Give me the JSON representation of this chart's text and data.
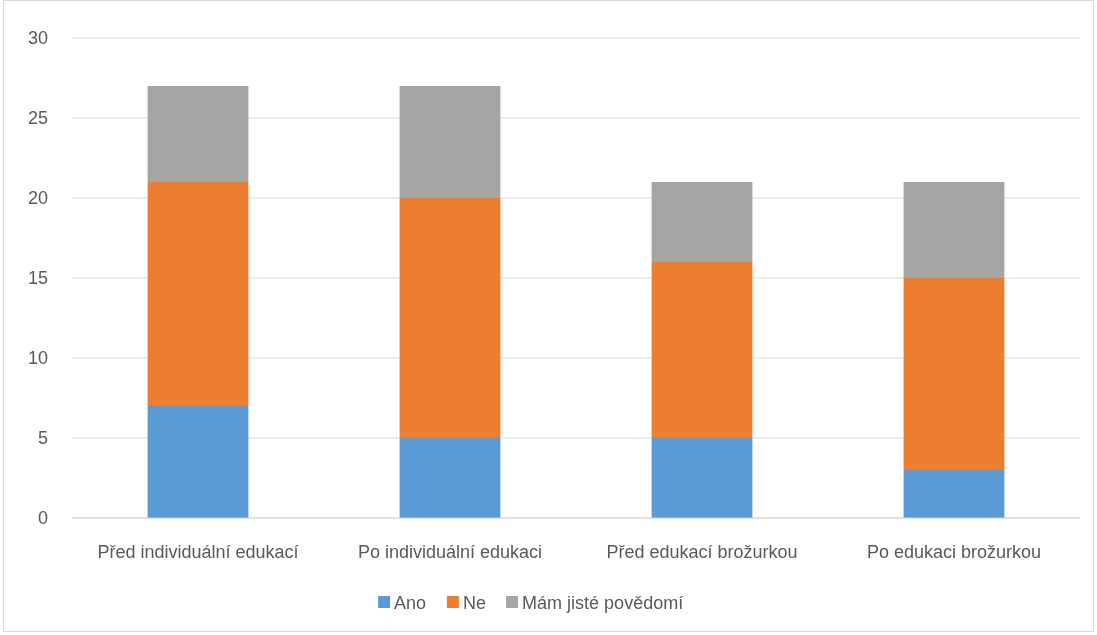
{
  "chart_data": {
    "type": "bar",
    "stacked": true,
    "categories": [
      "Před individuální edukací",
      "Po individuální edukaci",
      "Před edukací brožurkou",
      "Po edukaci brožurkou"
    ],
    "series": [
      {
        "name": "Ano",
        "color": "#5b9bd5",
        "values": [
          7,
          5,
          5,
          3
        ]
      },
      {
        "name": "Ne",
        "color": "#ed7d31",
        "values": [
          14,
          15,
          11,
          12
        ]
      },
      {
        "name": "Mám jisté povědomí",
        "color": "#a5a5a5",
        "values": [
          6,
          7,
          5,
          6
        ]
      }
    ],
    "ylim": [
      0,
      30
    ],
    "yticks": [
      0,
      5,
      10,
      15,
      20,
      25,
      30
    ],
    "grid": "y",
    "legend": "bottom"
  }
}
